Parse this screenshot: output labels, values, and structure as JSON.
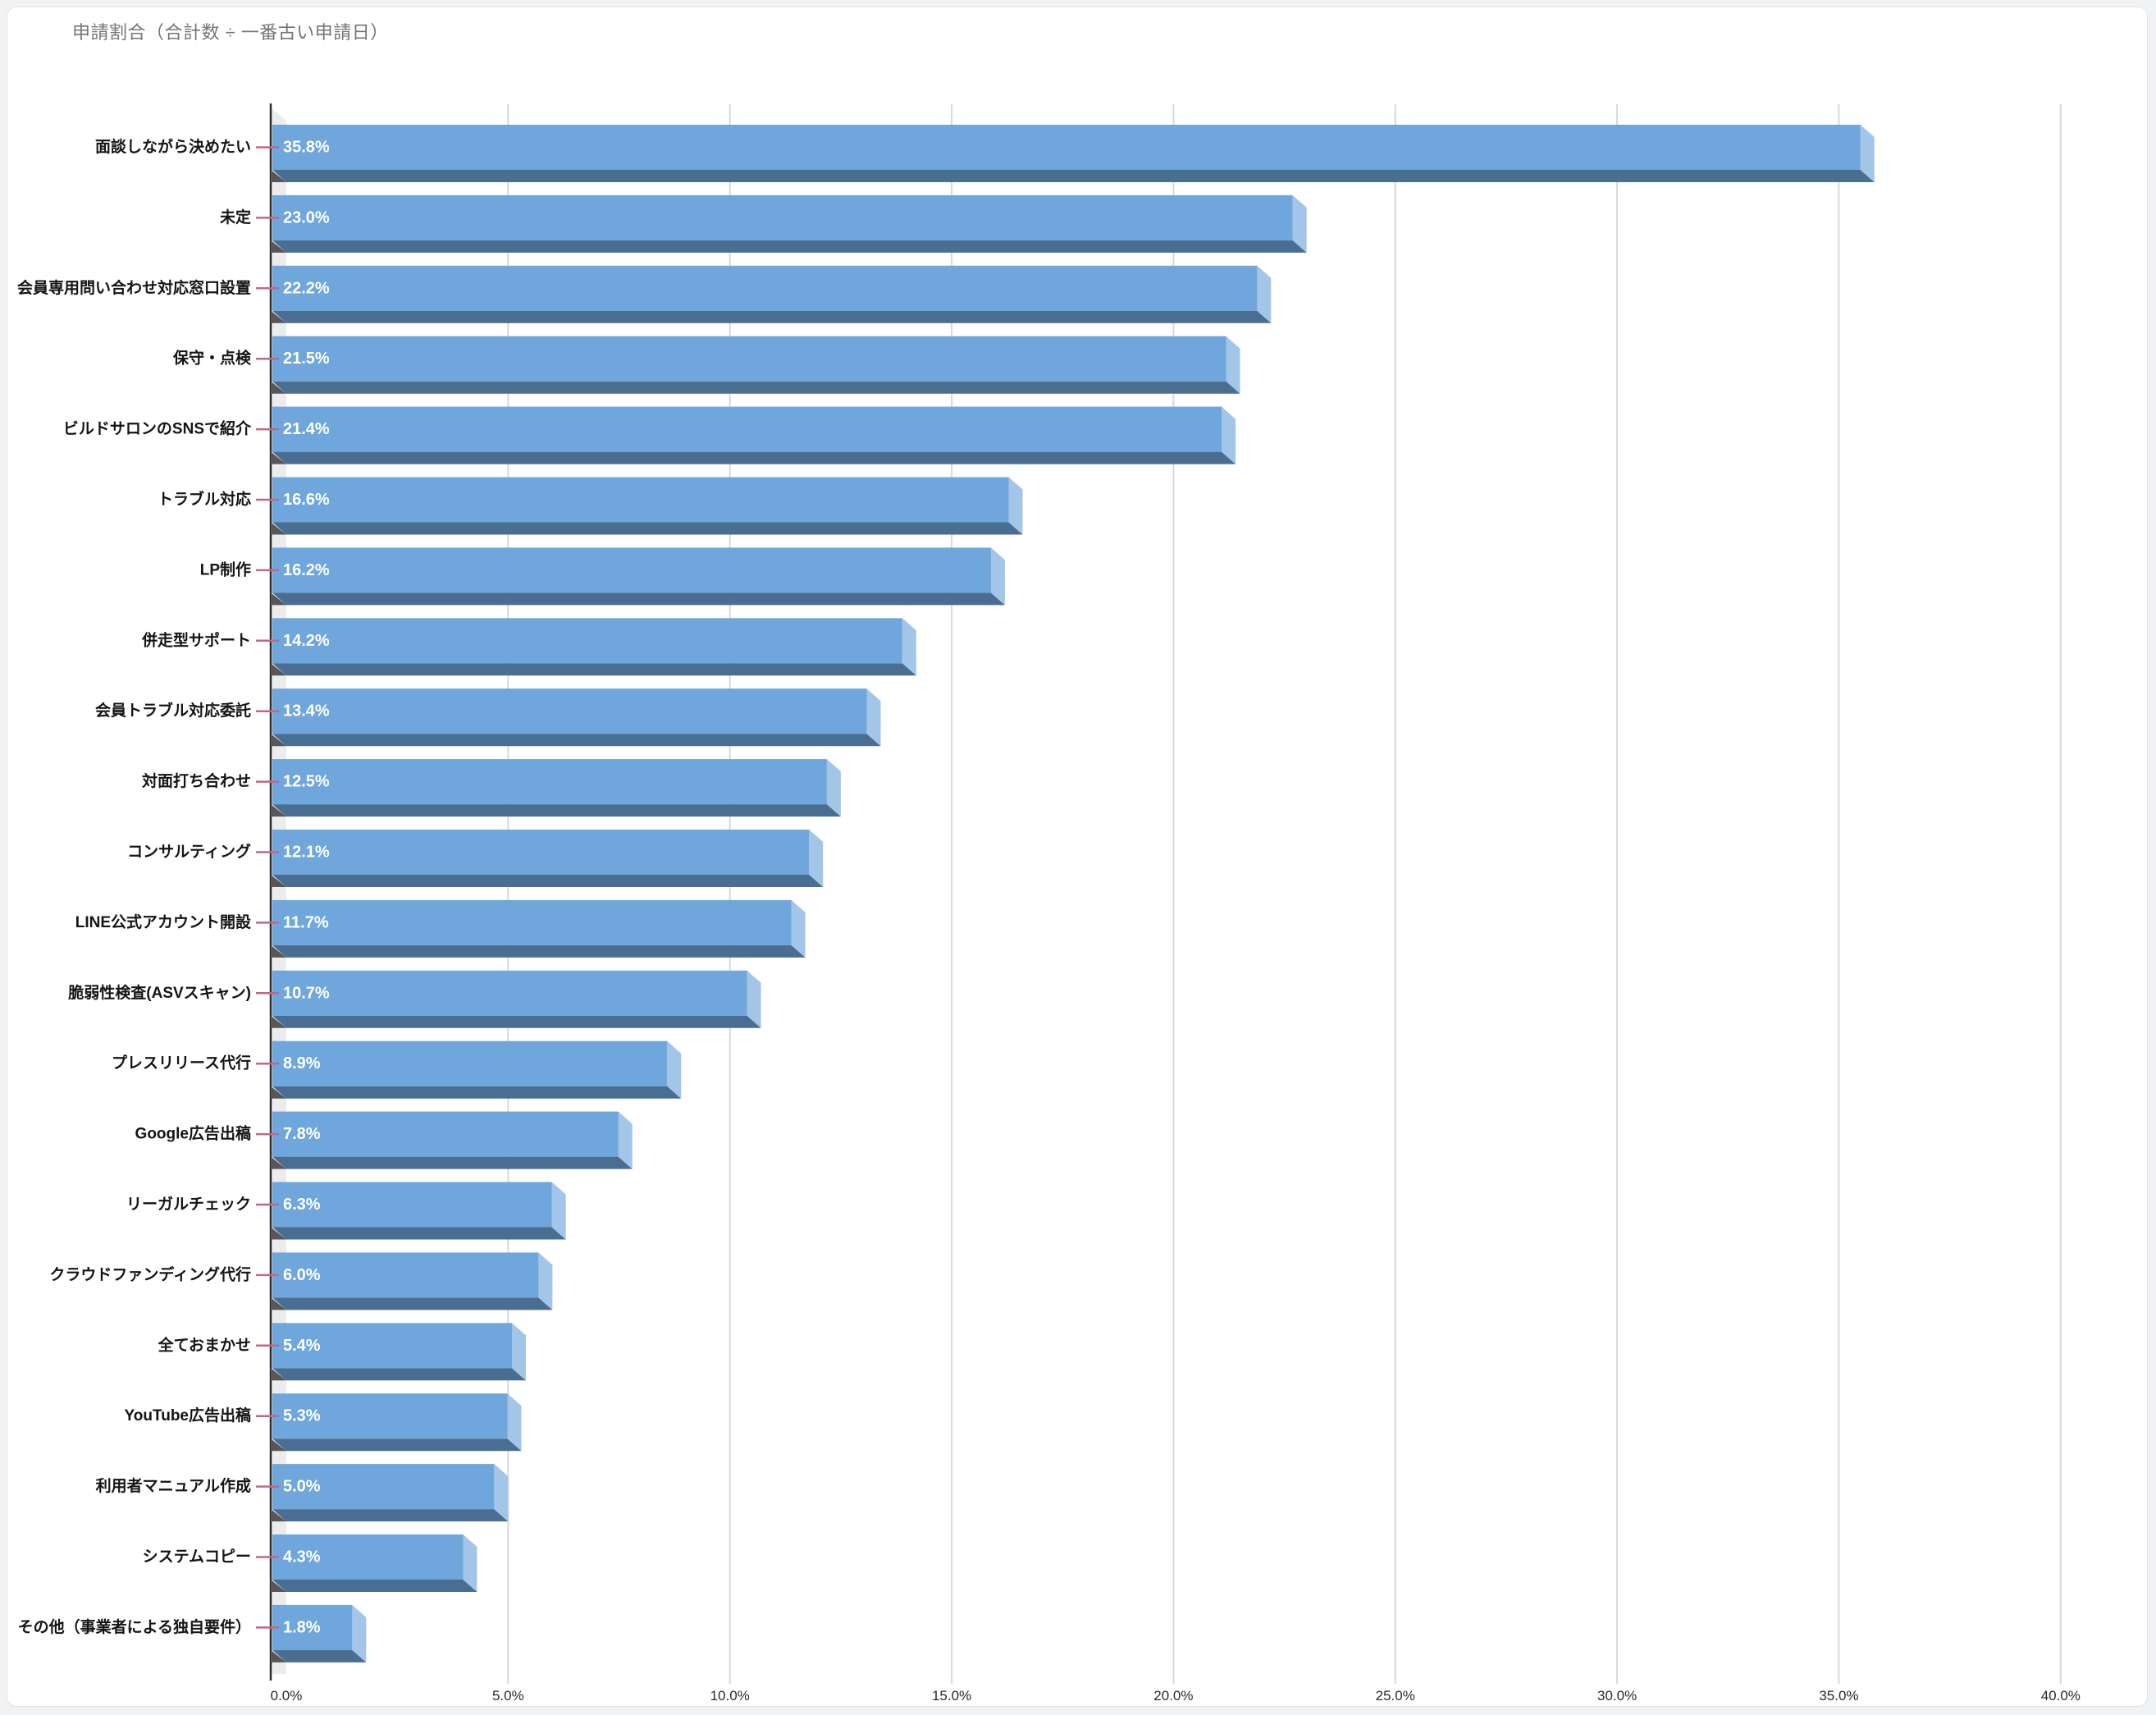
{
  "header": {
    "title": "申請割合（合計数 ÷ 一番古い申請日）"
  },
  "chart_data": {
    "type": "bar",
    "orientation": "horizontal",
    "style": "3d-beveled",
    "title": "申請割合（合計数 ÷ 一番古い申請日）",
    "xlabel": "",
    "ylabel": "",
    "xlim": [
      0,
      40
    ],
    "x_ticks": [
      "0.0%",
      "5.0%",
      "10.0%",
      "15.0%",
      "20.0%",
      "25.0%",
      "30.0%",
      "35.0%",
      "40.0%"
    ],
    "grid": "vertical",
    "legend": "none",
    "categories": [
      "面談しながら決めたい",
      "未定",
      "会員専用問い合わせ対応窓口設置",
      "保守・点検",
      "ビルドサロンのSNSで紹介",
      "トラブル対応",
      "LP制作",
      "併走型サポート",
      "会員トラブル対応委託",
      "対面打ち合わせ",
      "コンサルティング",
      "LINE公式アカウント開設",
      "脆弱性検査(ASVスキャン)",
      "プレスリリース代行",
      "Google広告出稿",
      "リーガルチェック",
      "クラウドファンディング代行",
      "全ておまかせ",
      "YouTube広告出稿",
      "利用者マニュアル作成",
      "システムコピー",
      "その他（事業者による独自要件）"
    ],
    "values": [
      35.8,
      23.0,
      22.2,
      21.5,
      21.4,
      16.6,
      16.2,
      14.2,
      13.4,
      12.5,
      12.1,
      11.7,
      10.7,
      8.9,
      7.8,
      6.3,
      6.0,
      5.4,
      5.3,
      5.0,
      4.3,
      1.8
    ],
    "value_labels": [
      "35.8%",
      "23.0%",
      "22.2%",
      "21.5%",
      "21.4%",
      "16.6%",
      "16.2%",
      "14.2%",
      "13.4%",
      "12.5%",
      "12.1%",
      "11.7%",
      "10.7%",
      "8.9%",
      "7.8%",
      "6.3%",
      "6.0%",
      "5.4%",
      "5.3%",
      "5.0%",
      "4.3%",
      "1.8%"
    ],
    "colors": {
      "bar_front": "#6fa6db",
      "bar_bottom_face": "#4a6d92",
      "bar_end_cap": "#a3c6e8",
      "wall": "#ececec",
      "wall_shadow_wedge": "#57575a",
      "axis_line": "#2c2c2c",
      "gridline": "#d8d8d8",
      "connector": "#bf6884",
      "value_text": "#ffffff",
      "category_text": "#141414",
      "tick_text": "#2a2a2a"
    }
  }
}
